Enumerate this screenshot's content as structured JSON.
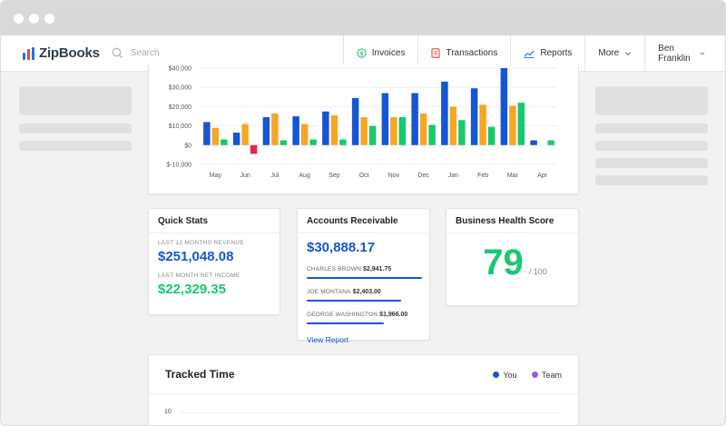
{
  "app": {
    "name": "ZipBooks",
    "search_placeholder": "Search",
    "nav": [
      {
        "label": "Invoices",
        "icon": "dollar-circle-icon",
        "color": "#2fbf71"
      },
      {
        "label": "Transactions",
        "icon": "receipt-icon",
        "color": "#e8453c"
      },
      {
        "label": "Reports",
        "icon": "chart-icon",
        "color": "#2a6de0"
      },
      {
        "label": "More"
      },
      {
        "label": "Ben Franklin"
      }
    ]
  },
  "colors": {
    "revenue": "#1556d4",
    "expenses": "#f5a623",
    "profit": "#18c96e",
    "loss": "#e8244f",
    "team": "#9b59e0"
  },
  "chart_data": {
    "type": "bar",
    "categories": [
      "May",
      "Jun",
      "Jul",
      "Aug",
      "Sep",
      "Oct",
      "Nov",
      "Dec",
      "Jan",
      "Feb",
      "Mar",
      "Apr"
    ],
    "series": [
      {
        "values": [
          12000,
          6500,
          14500,
          15000,
          17500,
          24500,
          27000,
          27000,
          33000,
          29500,
          40000,
          2500
        ]
      },
      {
        "values": [
          9000,
          11000,
          16500,
          11000,
          15500,
          14500,
          14500,
          16500,
          20000,
          21000,
          20500,
          0
        ]
      },
      {
        "values": [
          3000,
          -4500,
          2500,
          3000,
          3000,
          10000,
          14500,
          10500,
          13000,
          9500,
          22000,
          2500
        ]
      }
    ],
    "y_ticks": [
      "$-10,000",
      "$0",
      "$10,000",
      "$20,000",
      "$30,000",
      "$40,000"
    ],
    "ylim": [
      -10000,
      40000
    ],
    "grid": true
  },
  "quick_stats": {
    "title": "Quick Stats",
    "revenue_label": "LAST 12 MONTHS REVENUE",
    "revenue_value": "$251,048.08",
    "income_label": "LAST MONTH NET INCOME",
    "income_value": "$22,329.35"
  },
  "accounts_receivable": {
    "title": "Accounts Receivable",
    "total": "$30,888.17",
    "rows": [
      {
        "name": "CHARLES BROWN",
        "amount": "$2,941.75",
        "fraction": 1.0
      },
      {
        "name": "JOE MONTANA",
        "amount": "$2,403.00",
        "fraction": 0.817
      },
      {
        "name": "GEORGE WASHINGTON",
        "amount": "$1,966.00",
        "fraction": 0.668
      }
    ],
    "link": "View Report"
  },
  "health": {
    "title": "Business Health Score",
    "score": "79",
    "out_of": "/ 100"
  },
  "tracked_time": {
    "title": "Tracked Time",
    "legend": [
      "You",
      "Team"
    ],
    "y_tick": "10"
  }
}
